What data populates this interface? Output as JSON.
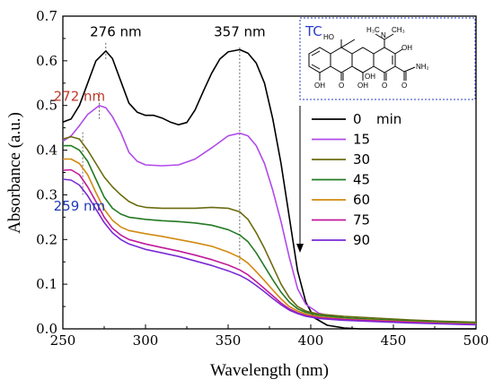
{
  "chart_data": {
    "type": "line",
    "title": "",
    "xlabel": "Wavelength (nm)",
    "ylabel": "Absorbance (a.u.)",
    "xlim": [
      250,
      500
    ],
    "ylim": [
      0.0,
      0.7
    ],
    "x_ticks": [
      "250",
      "300",
      "350",
      "400",
      "450",
      "500"
    ],
    "y_ticks": [
      "0.0",
      "0.1",
      "0.2",
      "0.3",
      "0.4",
      "0.5",
      "0.6",
      "0.7"
    ],
    "grid": false,
    "legend_position": "right",
    "legend_unit": "min",
    "series": [
      {
        "name": "0",
        "color": "#000000",
        "points": [
          [
            250,
            0.463
          ],
          [
            255,
            0.47
          ],
          [
            260,
            0.5
          ],
          [
            265,
            0.55
          ],
          [
            270,
            0.6
          ],
          [
            276,
            0.622
          ],
          [
            280,
            0.605
          ],
          [
            285,
            0.555
          ],
          [
            290,
            0.505
          ],
          [
            295,
            0.485
          ],
          [
            300,
            0.478
          ],
          [
            305,
            0.478
          ],
          [
            310,
            0.472
          ],
          [
            315,
            0.463
          ],
          [
            320,
            0.457
          ],
          [
            325,
            0.462
          ],
          [
            330,
            0.49
          ],
          [
            335,
            0.532
          ],
          [
            340,
            0.572
          ],
          [
            345,
            0.604
          ],
          [
            350,
            0.62
          ],
          [
            357,
            0.625
          ],
          [
            362,
            0.617
          ],
          [
            367,
            0.595
          ],
          [
            372,
            0.55
          ],
          [
            377,
            0.47
          ],
          [
            382,
            0.37
          ],
          [
            387,
            0.25
          ],
          [
            392,
            0.13
          ],
          [
            397,
            0.06
          ],
          [
            402,
            0.025
          ],
          [
            410,
            0.008
          ],
          [
            420,
            0.002
          ],
          [
            430,
            0.0
          ],
          [
            500,
            0.0
          ]
        ]
      },
      {
        "name": "15",
        "color": "#b04ae8",
        "points": [
          [
            250,
            0.42
          ],
          [
            255,
            0.432
          ],
          [
            260,
            0.455
          ],
          [
            265,
            0.48
          ],
          [
            272,
            0.5
          ],
          [
            276,
            0.495
          ],
          [
            280,
            0.475
          ],
          [
            285,
            0.44
          ],
          [
            290,
            0.395
          ],
          [
            295,
            0.375
          ],
          [
            300,
            0.367
          ],
          [
            310,
            0.365
          ],
          [
            320,
            0.367
          ],
          [
            330,
            0.38
          ],
          [
            340,
            0.405
          ],
          [
            350,
            0.432
          ],
          [
            357,
            0.438
          ],
          [
            362,
            0.432
          ],
          [
            367,
            0.41
          ],
          [
            372,
            0.37
          ],
          [
            377,
            0.31
          ],
          [
            382,
            0.24
          ],
          [
            387,
            0.16
          ],
          [
            392,
            0.09
          ],
          [
            397,
            0.055
          ],
          [
            405,
            0.035
          ],
          [
            420,
            0.022
          ],
          [
            440,
            0.018
          ],
          [
            460,
            0.015
          ],
          [
            480,
            0.012
          ],
          [
            500,
            0.01
          ]
        ]
      },
      {
        "name": "30",
        "color": "#6b6b10",
        "points": [
          [
            250,
            0.425
          ],
          [
            255,
            0.43
          ],
          [
            260,
            0.425
          ],
          [
            265,
            0.4
          ],
          [
            270,
            0.37
          ],
          [
            275,
            0.34
          ],
          [
            280,
            0.318
          ],
          [
            285,
            0.3
          ],
          [
            290,
            0.285
          ],
          [
            295,
            0.276
          ],
          [
            300,
            0.272
          ],
          [
            310,
            0.27
          ],
          [
            320,
            0.27
          ],
          [
            330,
            0.27
          ],
          [
            340,
            0.272
          ],
          [
            350,
            0.27
          ],
          [
            357,
            0.262
          ],
          [
            362,
            0.245
          ],
          [
            367,
            0.215
          ],
          [
            372,
            0.18
          ],
          [
            377,
            0.14
          ],
          [
            382,
            0.1
          ],
          [
            387,
            0.07
          ],
          [
            392,
            0.05
          ],
          [
            397,
            0.04
          ],
          [
            405,
            0.033
          ],
          [
            420,
            0.028
          ],
          [
            440,
            0.024
          ],
          [
            460,
            0.02
          ],
          [
            480,
            0.017
          ],
          [
            500,
            0.015
          ]
        ]
      },
      {
        "name": "45",
        "color": "#237a23",
        "points": [
          [
            250,
            0.41
          ],
          [
            255,
            0.41
          ],
          [
            260,
            0.4
          ],
          [
            265,
            0.375
          ],
          [
            270,
            0.335
          ],
          [
            275,
            0.295
          ],
          [
            280,
            0.27
          ],
          [
            285,
            0.257
          ],
          [
            290,
            0.25
          ],
          [
            300,
            0.245
          ],
          [
            310,
            0.242
          ],
          [
            320,
            0.24
          ],
          [
            330,
            0.237
          ],
          [
            340,
            0.232
          ],
          [
            350,
            0.222
          ],
          [
            357,
            0.21
          ],
          [
            362,
            0.195
          ],
          [
            367,
            0.17
          ],
          [
            372,
            0.14
          ],
          [
            377,
            0.11
          ],
          [
            382,
            0.082
          ],
          [
            387,
            0.06
          ],
          [
            392,
            0.045
          ],
          [
            397,
            0.037
          ],
          [
            405,
            0.03
          ],
          [
            420,
            0.025
          ],
          [
            440,
            0.021
          ],
          [
            460,
            0.018
          ],
          [
            480,
            0.015
          ],
          [
            500,
            0.013
          ]
        ]
      },
      {
        "name": "60",
        "color": "#d18a10",
        "points": [
          [
            250,
            0.38
          ],
          [
            255,
            0.38
          ],
          [
            260,
            0.37
          ],
          [
            265,
            0.345
          ],
          [
            270,
            0.305
          ],
          [
            275,
            0.268
          ],
          [
            280,
            0.243
          ],
          [
            285,
            0.228
          ],
          [
            290,
            0.22
          ],
          [
            300,
            0.213
          ],
          [
            310,
            0.207
          ],
          [
            320,
            0.2
          ],
          [
            330,
            0.193
          ],
          [
            340,
            0.185
          ],
          [
            350,
            0.172
          ],
          [
            357,
            0.16
          ],
          [
            362,
            0.147
          ],
          [
            367,
            0.128
          ],
          [
            372,
            0.108
          ],
          [
            377,
            0.087
          ],
          [
            382,
            0.067
          ],
          [
            387,
            0.05
          ],
          [
            392,
            0.04
          ],
          [
            397,
            0.033
          ],
          [
            405,
            0.027
          ],
          [
            420,
            0.022
          ],
          [
            440,
            0.019
          ],
          [
            460,
            0.016
          ],
          [
            480,
            0.013
          ],
          [
            500,
            0.011
          ]
        ]
      },
      {
        "name": "75",
        "color": "#c01a9a",
        "points": [
          [
            250,
            0.355
          ],
          [
            255,
            0.356
          ],
          [
            260,
            0.345
          ],
          [
            265,
            0.318
          ],
          [
            270,
            0.285
          ],
          [
            275,
            0.25
          ],
          [
            280,
            0.225
          ],
          [
            285,
            0.21
          ],
          [
            290,
            0.2
          ],
          [
            300,
            0.19
          ],
          [
            310,
            0.182
          ],
          [
            320,
            0.174
          ],
          [
            330,
            0.165
          ],
          [
            340,
            0.155
          ],
          [
            350,
            0.143
          ],
          [
            357,
            0.132
          ],
          [
            362,
            0.121
          ],
          [
            367,
            0.106
          ],
          [
            372,
            0.09
          ],
          [
            377,
            0.074
          ],
          [
            382,
            0.058
          ],
          [
            387,
            0.045
          ],
          [
            392,
            0.036
          ],
          [
            397,
            0.03
          ],
          [
            405,
            0.025
          ],
          [
            420,
            0.021
          ],
          [
            440,
            0.018
          ],
          [
            460,
            0.015
          ],
          [
            480,
            0.012
          ],
          [
            500,
            0.01
          ]
        ]
      },
      {
        "name": "90",
        "color": "#7a2ad6",
        "points": [
          [
            250,
            0.335
          ],
          [
            255,
            0.333
          ],
          [
            260,
            0.322
          ],
          [
            265,
            0.298
          ],
          [
            270,
            0.268
          ],
          [
            275,
            0.238
          ],
          [
            280,
            0.215
          ],
          [
            285,
            0.2
          ],
          [
            290,
            0.19
          ],
          [
            300,
            0.178
          ],
          [
            310,
            0.17
          ],
          [
            320,
            0.162
          ],
          [
            330,
            0.152
          ],
          [
            340,
            0.142
          ],
          [
            350,
            0.13
          ],
          [
            357,
            0.12
          ],
          [
            362,
            0.11
          ],
          [
            367,
            0.097
          ],
          [
            372,
            0.083
          ],
          [
            377,
            0.068
          ],
          [
            382,
            0.054
          ],
          [
            387,
            0.042
          ],
          [
            392,
            0.034
          ],
          [
            397,
            0.028
          ],
          [
            405,
            0.023
          ],
          [
            420,
            0.019
          ],
          [
            440,
            0.016
          ],
          [
            460,
            0.013
          ],
          [
            480,
            0.011
          ],
          [
            500,
            0.009
          ]
        ]
      }
    ],
    "annotations": [
      {
        "text": "276 nm",
        "x": 276,
        "color": "#000000"
      },
      {
        "text": "357 nm",
        "x": 357,
        "color": "#000000"
      },
      {
        "text": "272 nm",
        "x": 272,
        "color": "#c0392b"
      },
      {
        "text": "259 nm",
        "x": 259,
        "color": "#1f3ab8"
      }
    ]
  },
  "inset": {
    "title": "TC",
    "atom_labels": [
      "HO",
      "H₃C",
      "N",
      "CH₃",
      "OH",
      "NH₂",
      "OH",
      "O",
      "OH",
      "OH",
      "O",
      "O"
    ]
  }
}
